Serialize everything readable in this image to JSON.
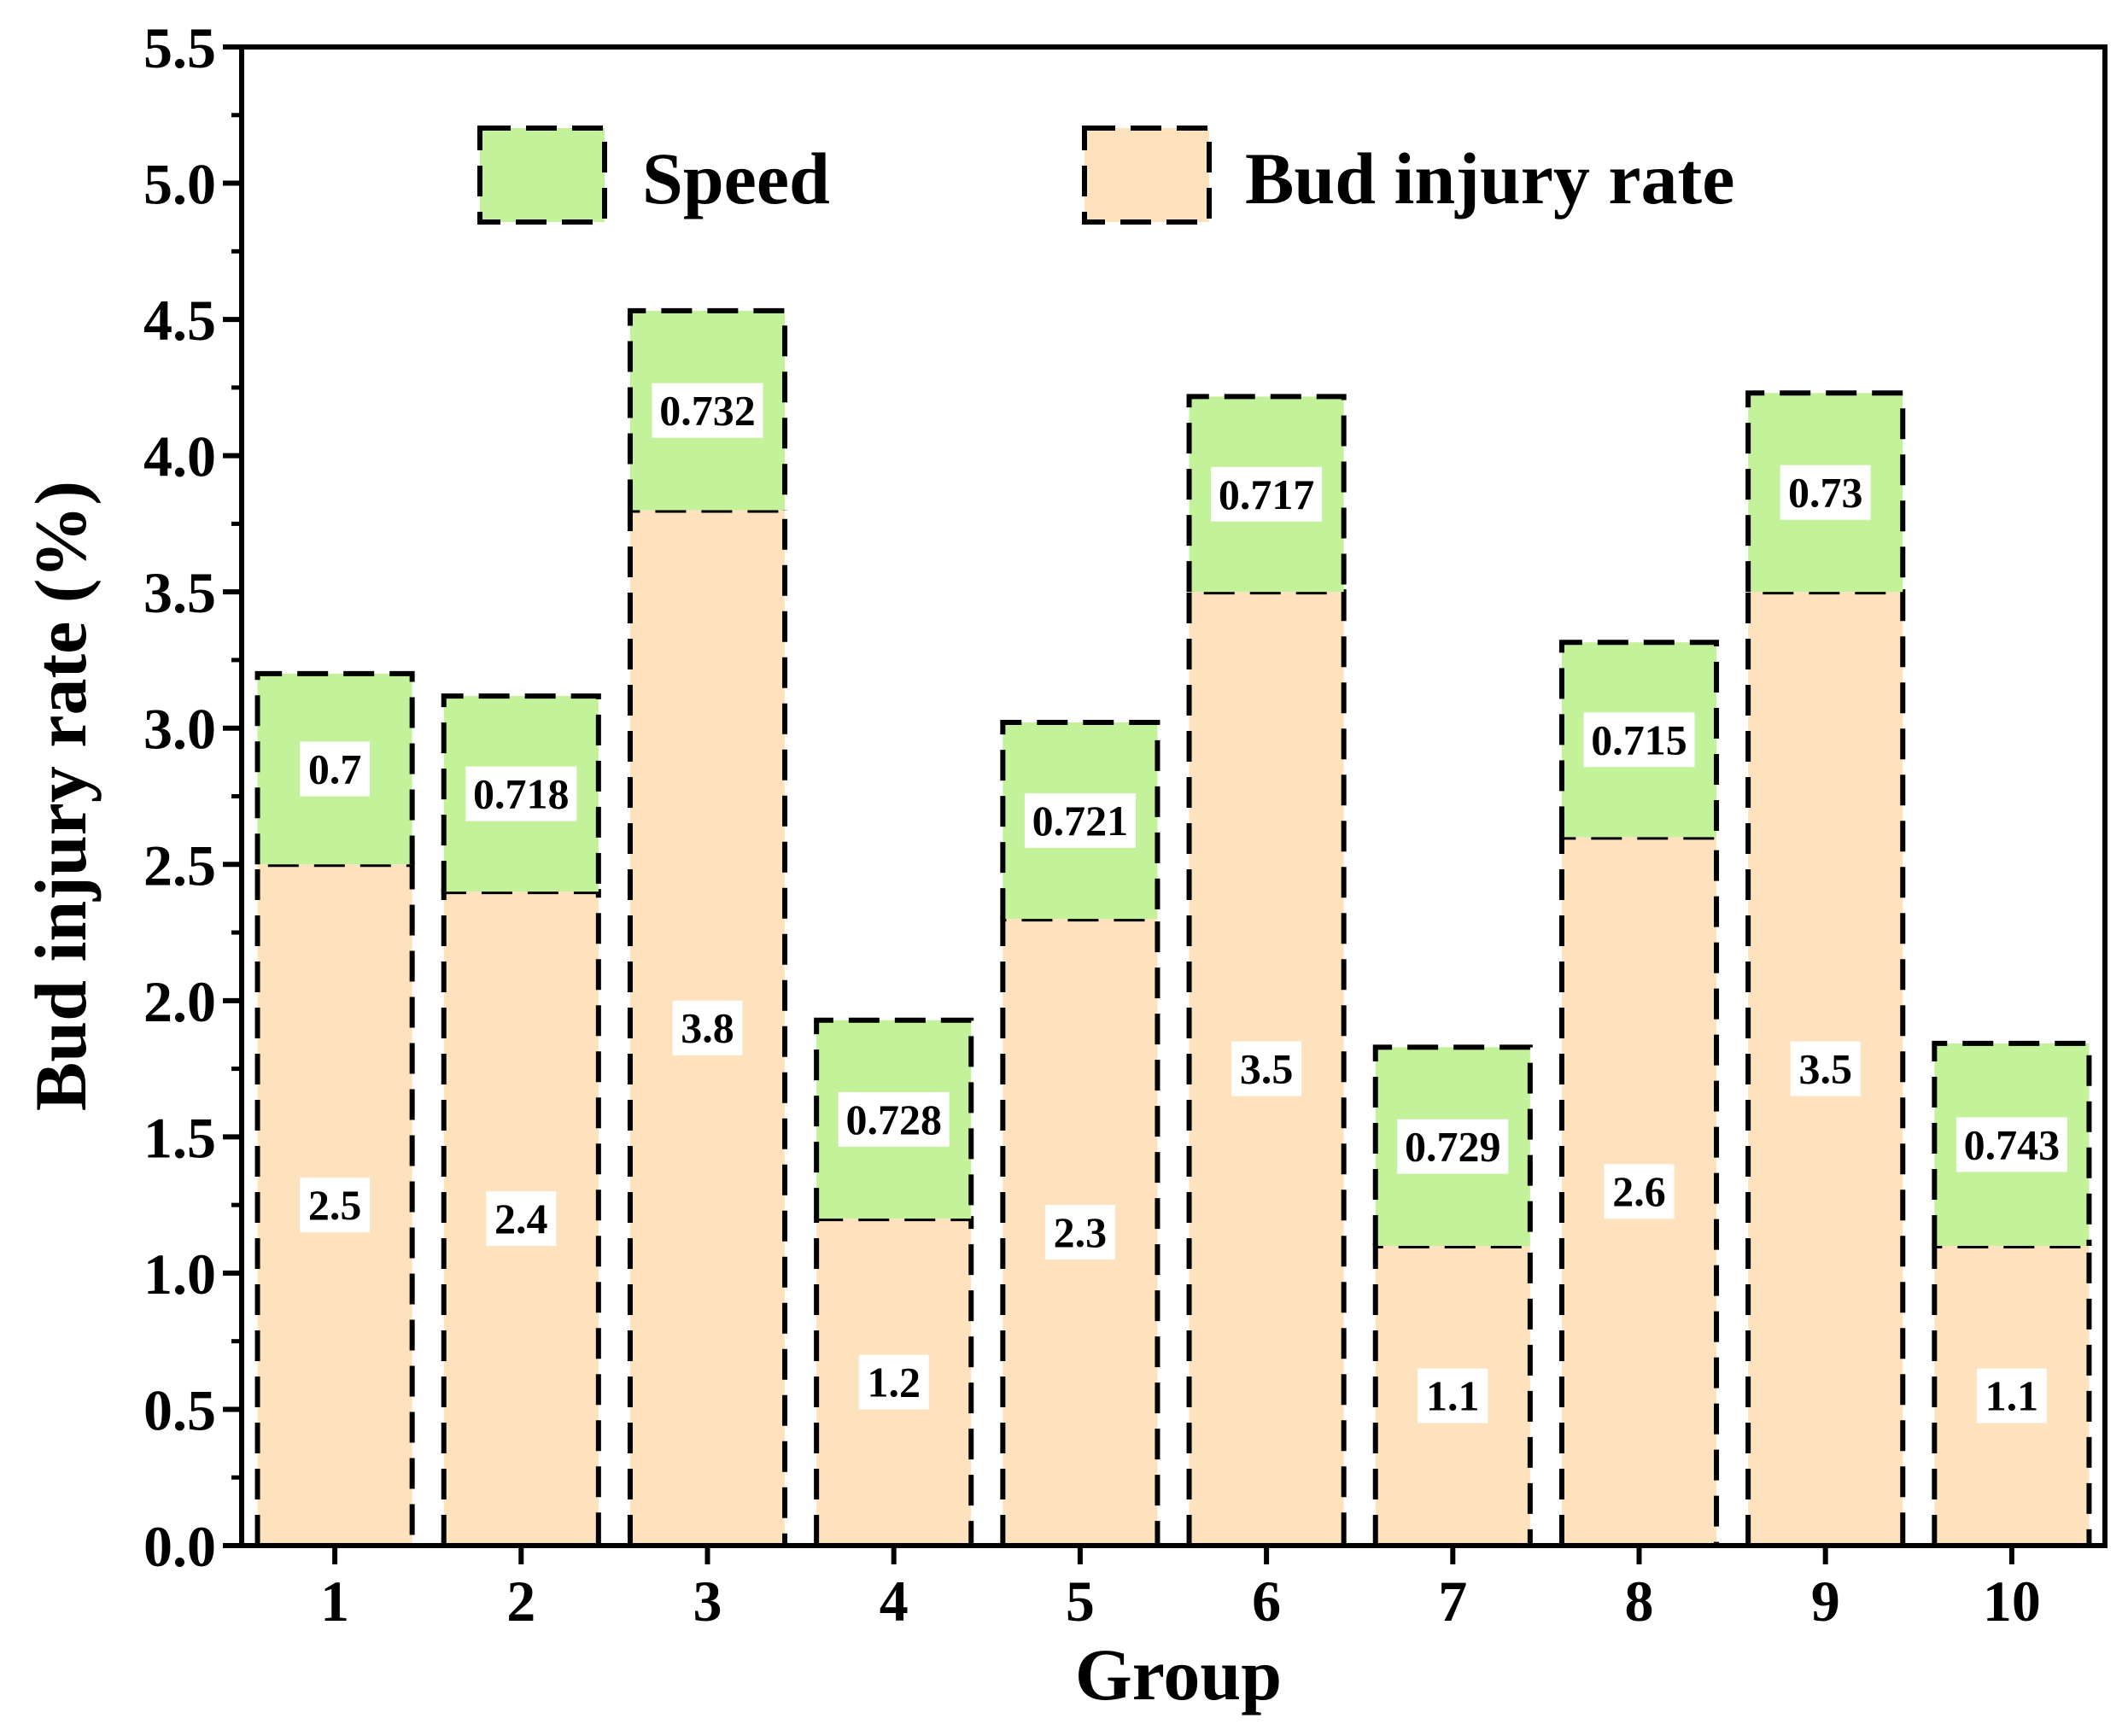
{
  "chart_data": {
    "type": "bar",
    "stacked": true,
    "title": "",
    "xlabel": "Group",
    "ylabel": "Bud injury rate (%)",
    "ylim": [
      0,
      5.5
    ],
    "yticks": [
      "0.0",
      "0.5",
      "1.0",
      "1.5",
      "2.0",
      "2.5",
      "3.0",
      "3.5",
      "4.0",
      "4.5",
      "5.0",
      "5.5"
    ],
    "categories": [
      "1",
      "2",
      "3",
      "4",
      "5",
      "6",
      "7",
      "8",
      "9",
      "10"
    ],
    "series": [
      {
        "name": "Bud injury rate",
        "color": "#fde2bd",
        "values": [
          2.5,
          2.4,
          3.8,
          1.2,
          2.3,
          3.5,
          1.1,
          2.6,
          3.5,
          1.1
        ],
        "labels": [
          "2.5",
          "2.4",
          "3.8",
          "1.2",
          "2.3",
          "3.5",
          "1.1",
          "2.6",
          "3.5",
          "1.1"
        ]
      },
      {
        "name": "Speed",
        "color": "#c3f29a",
        "values": [
          0.7,
          0.718,
          0.732,
          0.728,
          0.721,
          0.717,
          0.729,
          0.715,
          0.73,
          0.743
        ],
        "labels": [
          "0.7",
          "0.718",
          "0.732",
          "0.728",
          "0.721",
          "0.717",
          "0.729",
          "0.715",
          "0.73",
          "0.743"
        ]
      }
    ],
    "legend": {
      "position": "top",
      "entries": [
        "Speed",
        "Bud injury rate"
      ]
    }
  }
}
